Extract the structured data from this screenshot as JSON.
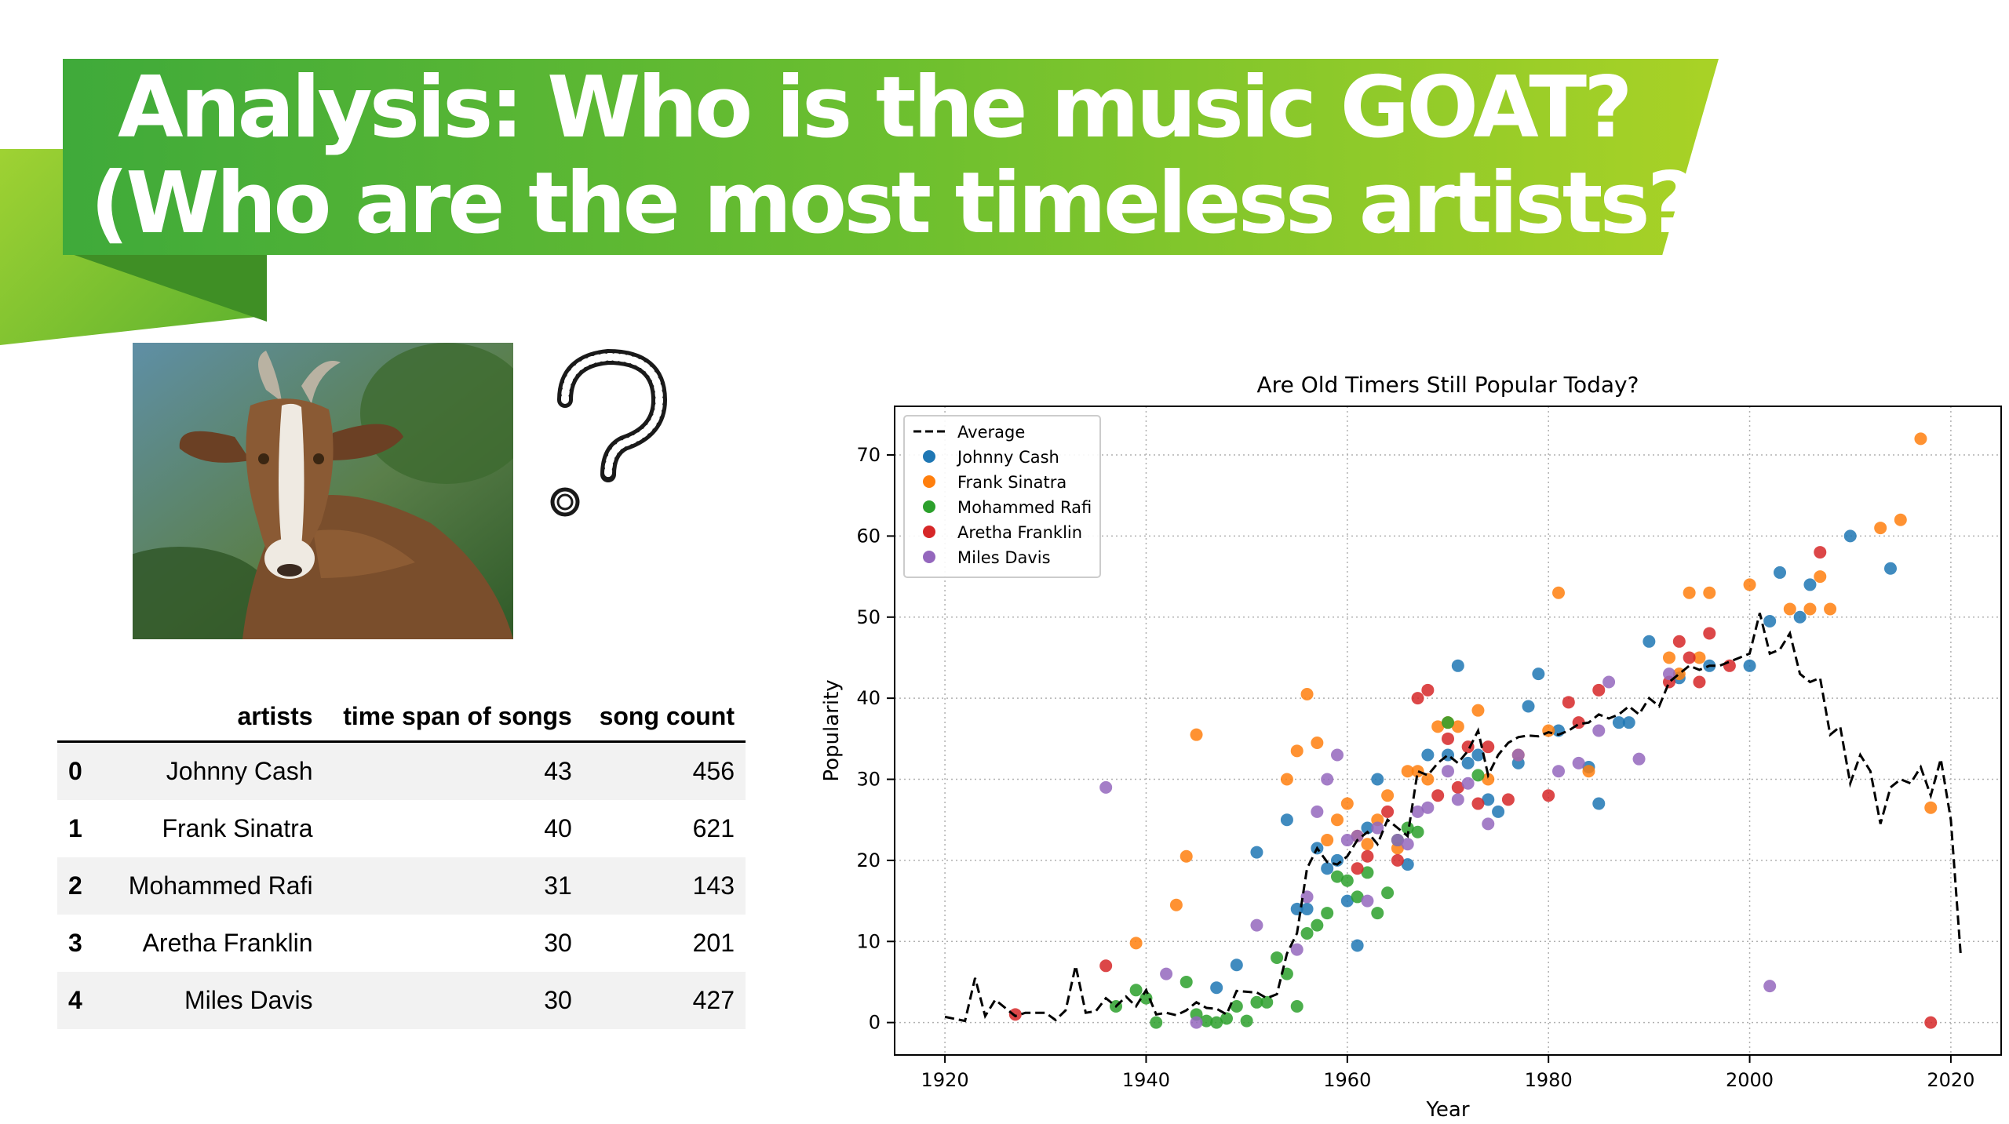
{
  "slide": {
    "title_line1": "Analysis: Who is the music GOAT?",
    "title_line2": "(Who are the most timeless artists?)",
    "accent_colors": [
      "#3faa3a",
      "#a9d226",
      "#3f8f25"
    ]
  },
  "table": {
    "columns": [
      "artists",
      "time span of songs",
      "song count"
    ],
    "rows": [
      {
        "index": "0",
        "artists": "Johnny Cash",
        "time_span": "43",
        "song_count": "456"
      },
      {
        "index": "1",
        "artists": "Frank Sinatra",
        "time_span": "40",
        "song_count": "621"
      },
      {
        "index": "2",
        "artists": "Mohammed Rafi",
        "time_span": "31",
        "song_count": "143"
      },
      {
        "index": "3",
        "artists": "Aretha Franklin",
        "time_span": "30",
        "song_count": "201"
      },
      {
        "index": "4",
        "artists": "Miles Davis",
        "time_span": "30",
        "song_count": "427"
      }
    ]
  },
  "chart_data": {
    "type": "scatter",
    "title": "Are Old Timers Still Popular Today?",
    "xlabel": "Year",
    "ylabel": "Popularity",
    "xlim": [
      1915,
      2025
    ],
    "ylim": [
      -4,
      76
    ],
    "xticks": [
      1920,
      1940,
      1960,
      1980,
      2000,
      2020
    ],
    "yticks": [
      0,
      10,
      20,
      30,
      40,
      50,
      60,
      70
    ],
    "grid": true,
    "legend_position": "top-left",
    "average": {
      "name": "Average",
      "style": "dashed",
      "color": "#000000",
      "x": [
        1920,
        1922,
        1923,
        1924,
        1925,
        1927,
        1928,
        1930,
        1931,
        1932,
        1933,
        1934,
        1935,
        1936,
        1937,
        1938,
        1939,
        1940,
        1941,
        1942,
        1943,
        1944,
        1945,
        1946,
        1947,
        1948,
        1949,
        1950,
        1951,
        1952,
        1953,
        1954,
        1955,
        1956,
        1957,
        1958,
        1959,
        1960,
        1961,
        1962,
        1963,
        1964,
        1965,
        1966,
        1967,
        1968,
        1969,
        1970,
        1971,
        1972,
        1973,
        1974,
        1975,
        1976,
        1977,
        1978,
        1979,
        1980,
        1981,
        1982,
        1983,
        1984,
        1985,
        1986,
        1987,
        1988,
        1989,
        1990,
        1991,
        1992,
        1993,
        1994,
        1995,
        1996,
        1997,
        1998,
        1999,
        2000,
        2001,
        2002,
        2003,
        2004,
        2005,
        2006,
        2007,
        2008,
        2009,
        2010,
        2011,
        2012,
        2013,
        2014,
        2015,
        2016,
        2017,
        2018,
        2019,
        2020,
        2021
      ],
      "y": [
        0.7,
        0.2,
        5.5,
        0.8,
        2.8,
        0.8,
        1.2,
        1.2,
        0.3,
        1.5,
        7.0,
        1.2,
        1.4,
        3.0,
        2.0,
        3.2,
        2.0,
        4.0,
        1.0,
        1.2,
        0.9,
        1.5,
        2.5,
        1.8,
        1.7,
        1.0,
        3.9,
        3.8,
        3.7,
        3.0,
        3.5,
        8.5,
        11.0,
        19.0,
        21.5,
        19.8,
        19.5,
        20.5,
        22.5,
        23.5,
        22.0,
        25.0,
        24.0,
        23.0,
        31.0,
        30.5,
        32.0,
        33.0,
        32.0,
        33.5,
        36.0,
        30.5,
        33.0,
        34.5,
        35.2,
        35.4,
        35.3,
        35.8,
        35.5,
        36.0,
        36.8,
        37.0,
        38.0,
        37.5,
        38.0,
        39.0,
        38.0,
        40.0,
        39.0,
        42.0,
        43.0,
        44.0,
        43.5,
        44.0,
        44.0,
        44.5,
        45.0,
        45.5,
        50.5,
        45.5,
        46.0,
        48.0,
        43.0,
        42.0,
        42.5,
        35.5,
        36.5,
        29.5,
        33.0,
        31.0,
        24.5,
        29.0,
        30.0,
        29.5,
        31.5,
        28.0,
        32.5,
        25.0,
        8.0
      ]
    },
    "series": [
      {
        "name": "Johnny Cash",
        "color": "#1f77b4",
        "points": [
          [
            1947,
            4.3
          ],
          [
            1949,
            7.1
          ],
          [
            1951,
            21
          ],
          [
            1954,
            25
          ],
          [
            1955,
            14
          ],
          [
            1956,
            14
          ],
          [
            1957,
            21.5
          ],
          [
            1958,
            19
          ],
          [
            1959,
            20
          ],
          [
            1960,
            15
          ],
          [
            1961,
            9.5
          ],
          [
            1962,
            24
          ],
          [
            1963,
            30
          ],
          [
            1966,
            19.5
          ],
          [
            1968,
            33
          ],
          [
            1970,
            33
          ],
          [
            1971,
            44
          ],
          [
            1972,
            32
          ],
          [
            1973,
            33
          ],
          [
            1974,
            27.5
          ],
          [
            1975,
            26
          ],
          [
            1977,
            32
          ],
          [
            1978,
            39
          ],
          [
            1979,
            43
          ],
          [
            1981,
            36
          ],
          [
            1984,
            31.5
          ],
          [
            1985,
            27
          ],
          [
            1987,
            37
          ],
          [
            1988,
            37
          ],
          [
            1990,
            47
          ],
          [
            1993,
            42.5
          ],
          [
            1996,
            44
          ],
          [
            2000,
            44
          ],
          [
            2002,
            49.5
          ],
          [
            2003,
            55.5
          ],
          [
            2005,
            50
          ],
          [
            2006,
            54
          ],
          [
            2010,
            60
          ],
          [
            2014,
            56
          ]
        ]
      },
      {
        "name": "Frank Sinatra",
        "color": "#ff7f0e",
        "points": [
          [
            1939,
            9.8
          ],
          [
            1943,
            14.5
          ],
          [
            1944,
            20.5
          ],
          [
            1945,
            35.5
          ],
          [
            1954,
            30
          ],
          [
            1955,
            33.5
          ],
          [
            1956,
            40.5
          ],
          [
            1957,
            34.5
          ],
          [
            1958,
            22.5
          ],
          [
            1959,
            25
          ],
          [
            1960,
            27
          ],
          [
            1961,
            23
          ],
          [
            1962,
            22
          ],
          [
            1963,
            25
          ],
          [
            1964,
            28
          ],
          [
            1965,
            21.5
          ],
          [
            1966,
            31
          ],
          [
            1967,
            31
          ],
          [
            1968,
            30
          ],
          [
            1969,
            36.5
          ],
          [
            1970,
            37
          ],
          [
            1971,
            36.5
          ],
          [
            1973,
            38.5
          ],
          [
            1974,
            30
          ],
          [
            1977,
            33
          ],
          [
            1980,
            36
          ],
          [
            1981,
            53
          ],
          [
            1984,
            31
          ],
          [
            1992,
            45
          ],
          [
            1993,
            43
          ],
          [
            1994,
            53
          ],
          [
            1995,
            45
          ],
          [
            1996,
            53
          ],
          [
            2000,
            54
          ],
          [
            2004,
            51
          ],
          [
            2006,
            51
          ],
          [
            2007,
            55
          ],
          [
            2008,
            51
          ],
          [
            2013,
            61
          ],
          [
            2015,
            62
          ],
          [
            2017,
            72
          ],
          [
            2018,
            26.5
          ]
        ]
      },
      {
        "name": "Mohammed Rafi",
        "color": "#2ca02c",
        "points": [
          [
            1937,
            2
          ],
          [
            1939,
            4
          ],
          [
            1940,
            3
          ],
          [
            1941,
            0
          ],
          [
            1944,
            5
          ],
          [
            1945,
            1
          ],
          [
            1946,
            0.2
          ],
          [
            1947,
            0
          ],
          [
            1948,
            0.5
          ],
          [
            1949,
            2
          ],
          [
            1950,
            0.2
          ],
          [
            1951,
            2.5
          ],
          [
            1952,
            2.5
          ],
          [
            1953,
            8
          ],
          [
            1954,
            6
          ],
          [
            1955,
            2
          ],
          [
            1956,
            11
          ],
          [
            1957,
            12
          ],
          [
            1958,
            13.5
          ],
          [
            1959,
            18
          ],
          [
            1960,
            17.5
          ],
          [
            1961,
            15.5
          ],
          [
            1962,
            18.5
          ],
          [
            1963,
            13.5
          ],
          [
            1964,
            16
          ],
          [
            1965,
            22.5
          ],
          [
            1966,
            24
          ],
          [
            1967,
            23.5
          ],
          [
            1970,
            37
          ],
          [
            1973,
            30.5
          ]
        ]
      },
      {
        "name": "Aretha Franklin",
        "color": "#d62728",
        "points": [
          [
            1927,
            1
          ],
          [
            1936,
            7
          ],
          [
            1961,
            19
          ],
          [
            1962,
            20.5
          ],
          [
            1964,
            26
          ],
          [
            1965,
            20
          ],
          [
            1967,
            40
          ],
          [
            1968,
            41
          ],
          [
            1969,
            28
          ],
          [
            1970,
            35
          ],
          [
            1971,
            29
          ],
          [
            1972,
            34
          ],
          [
            1973,
            27
          ],
          [
            1974,
            34
          ],
          [
            1976,
            27.5
          ],
          [
            1980,
            28
          ],
          [
            1982,
            39.5
          ],
          [
            1983,
            37
          ],
          [
            1985,
            41
          ],
          [
            1992,
            42
          ],
          [
            1993,
            47
          ],
          [
            1994,
            45
          ],
          [
            1995,
            42
          ],
          [
            1996,
            48
          ],
          [
            1998,
            44
          ],
          [
            2007,
            58
          ],
          [
            2018,
            0
          ]
        ]
      },
      {
        "name": "Miles Davis",
        "color": "#9467bd",
        "points": [
          [
            1936,
            29
          ],
          [
            1942,
            6
          ],
          [
            1945,
            0
          ],
          [
            1951,
            12
          ],
          [
            1955,
            9
          ],
          [
            1956,
            15.5
          ],
          [
            1957,
            26
          ],
          [
            1958,
            30
          ],
          [
            1959,
            33
          ],
          [
            1960,
            22.5
          ],
          [
            1961,
            23
          ],
          [
            1962,
            15
          ],
          [
            1963,
            24
          ],
          [
            1965,
            22.5
          ],
          [
            1966,
            22
          ],
          [
            1967,
            26
          ],
          [
            1968,
            26.5
          ],
          [
            1970,
            31
          ],
          [
            1971,
            27.5
          ],
          [
            1972,
            29.5
          ],
          [
            1974,
            24.5
          ],
          [
            1977,
            33
          ],
          [
            1981,
            31
          ],
          [
            1983,
            32
          ],
          [
            1985,
            36
          ],
          [
            1986,
            42
          ],
          [
            1989,
            32.5
          ],
          [
            1992,
            43
          ],
          [
            2002,
            4.5
          ]
        ]
      }
    ]
  }
}
